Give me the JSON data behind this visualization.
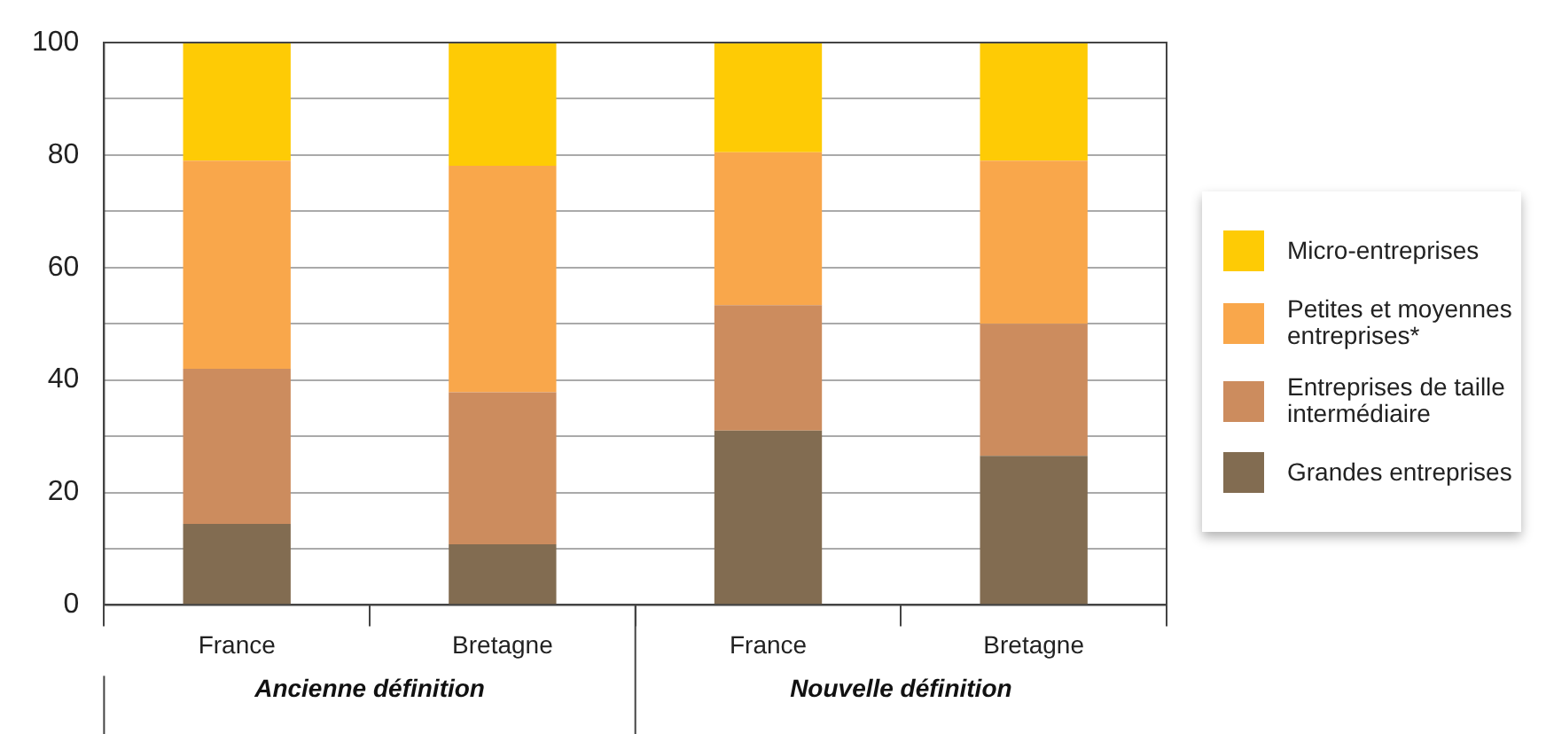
{
  "chart_data": {
    "type": "bar",
    "stacked": true,
    "categories": [
      "France",
      "Bretagne",
      "France",
      "Bretagne"
    ],
    "series": [
      {
        "name": "Grandes entreprises",
        "color": "#826c51",
        "values": [
          14.4,
          10.8,
          31.0,
          26.5
        ]
      },
      {
        "name": "Entreprises de taille intermédiaire",
        "color": "#cc8c5e",
        "values": [
          27.6,
          27.0,
          22.3,
          23.5
        ]
      },
      {
        "name": "Petites et moyennes entreprises*",
        "color": "#f9a74b",
        "values": [
          37.0,
          40.3,
          27.2,
          29.0
        ]
      },
      {
        "name": "Micro-entreprises",
        "color": "#fecb05",
        "values": [
          21.0,
          21.9,
          19.5,
          21.0
        ]
      }
    ],
    "ylim": [
      0,
      100
    ],
    "yticks": [
      0,
      {
        "value": 10,
        "label": null
      },
      20,
      {
        "value": 30,
        "label": null
      },
      40,
      {
        "value": 50,
        "label": null
      },
      60,
      {
        "value": 70,
        "label": null
      },
      80,
      {
        "value": 90,
        "label": null
      },
      100
    ],
    "grid": "y",
    "legend": "right",
    "annotations": [
      "Ancienne définition",
      "Nouvelle définition"
    ]
  }
}
